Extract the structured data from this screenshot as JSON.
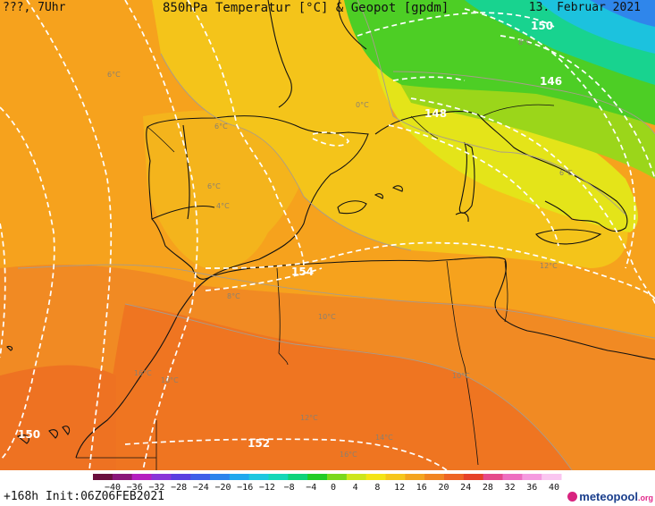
{
  "header": {
    "left": "???, 7Uhr",
    "title": "850hPa Temperatur [°C] & Geopot [gpdm]",
    "date": "13. Februar 2021"
  },
  "footer": {
    "init": "+168h Init:06Z06FEB2021",
    "brand": "meteopool",
    "brand_tld": ".org"
  },
  "colorbar": {
    "ticks": [
      "−40",
      "−36",
      "−32",
      "−28",
      "−24",
      "−20",
      "−16",
      "−12",
      "−8",
      "−4",
      "0",
      "4",
      "8",
      "12",
      "16",
      "20",
      "24",
      "28",
      "32",
      "36",
      "40"
    ],
    "colors": [
      "#6a0f3e",
      "#8a1679",
      "#b51fbf",
      "#8a35d8",
      "#5b3fe0",
      "#3f5fe8",
      "#2d84ec",
      "#21a8ee",
      "#1ec7e0",
      "#15d7b8",
      "#0fd37a",
      "#23cc25",
      "#7ad81c",
      "#cde61c",
      "#f4e415",
      "#f6c61b",
      "#f4a41f",
      "#f18421",
      "#ee6424",
      "#e64128",
      "#e54a8a",
      "#ee6fc0",
      "#f59adf",
      "#fac6f0"
    ]
  },
  "map_labels": {
    "isohypses": [
      "150",
      "148",
      "146",
      "154",
      "152",
      "150"
    ],
    "isotherms": [
      "6°C",
      "8°C",
      "6°C",
      "6°C",
      "4°C",
      "0°C",
      "6°C",
      "8°C",
      "10°C",
      "10°C",
      "10°C",
      "12°C",
      "12°C",
      "16°C",
      "14°C",
      "16°C"
    ]
  }
}
